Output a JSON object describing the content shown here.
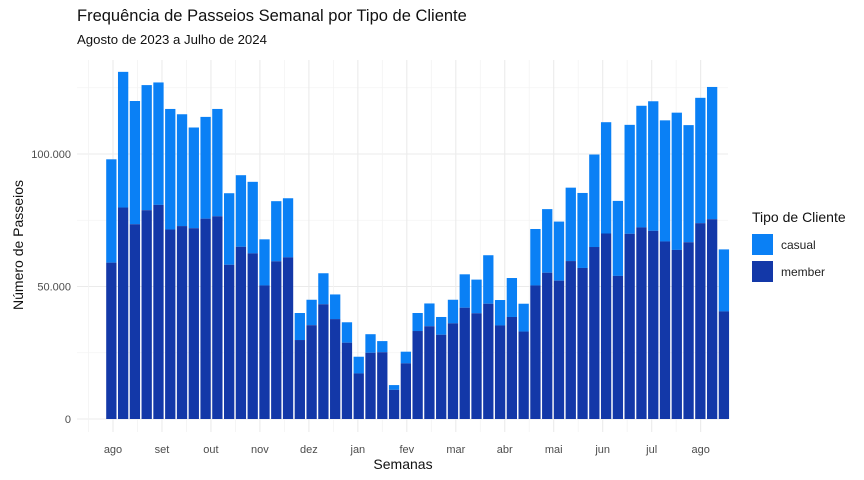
{
  "chart_data": {
    "type": "bar",
    "stacked": true,
    "title": "Frequência de Passeios Semanal por Tipo de Cliente",
    "subtitle": "Agosto de 2023 a Julho de 2024",
    "xlabel": "Semanas",
    "ylabel": "Número de Passeios",
    "ylim": [
      0,
      130000
    ],
    "yticks": [
      0,
      50000,
      100000
    ],
    "ytick_labels": [
      "0",
      "50.000",
      "100.000"
    ],
    "xtick_labels": [
      "ago",
      "set",
      "out",
      "nov",
      "dez",
      "jan",
      "fev",
      "mar",
      "abr",
      "mai",
      "jun",
      "jul",
      "ago"
    ],
    "grid": true,
    "legend": {
      "title": "Tipo de Cliente",
      "position": "right",
      "entries": [
        "casual",
        "member"
      ]
    },
    "colors": {
      "casual": "#0a80f5",
      "member": "#1338a8"
    },
    "series": [
      {
        "name": "member",
        "values": [
          59000,
          79800,
          73500,
          78800,
          80800,
          71500,
          72800,
          72000,
          75600,
          76500,
          58200,
          65000,
          62500,
          50400,
          59500,
          61000,
          29800,
          35400,
          43300,
          37700,
          28800,
          17200,
          25000,
          25200,
          11000,
          21000,
          33200,
          35000,
          31800,
          36100,
          42000,
          39900,
          43500,
          35300,
          38500,
          33000,
          50400,
          55200,
          52200,
          59600,
          57000,
          64900,
          70000,
          54000,
          69900,
          72300,
          71000,
          67000,
          63800,
          66700,
          73900,
          75400,
          40600
        ]
      },
      {
        "name": "casual",
        "values": [
          39000,
          51200,
          46500,
          47200,
          46200,
          45500,
          42200,
          38000,
          38400,
          40500,
          27000,
          27000,
          27000,
          17400,
          22700,
          22300,
          10200,
          9600,
          11700,
          9300,
          7700,
          6300,
          7000,
          4200,
          1800,
          4400,
          6800,
          8600,
          6700,
          8900,
          12600,
          12700,
          18300,
          9600,
          14700,
          10500,
          21300,
          24000,
          22300,
          27700,
          28300,
          34900,
          42000,
          28300,
          41100,
          45900,
          48900,
          45700,
          51800,
          44200,
          47300,
          49900,
          23400
        ]
      }
    ]
  }
}
